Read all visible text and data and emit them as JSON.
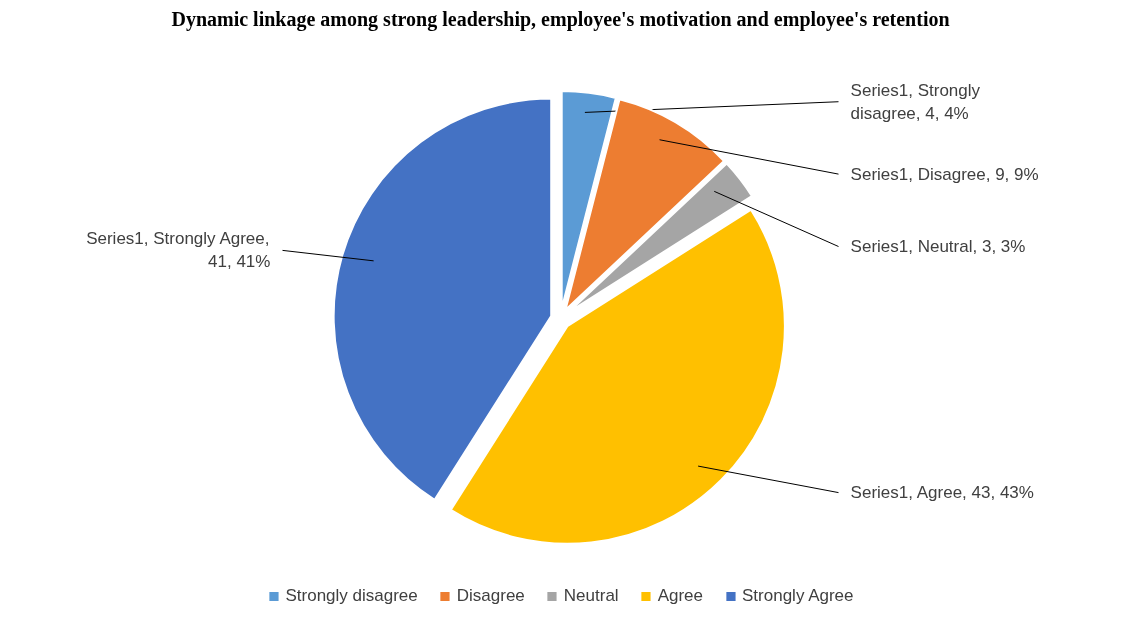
{
  "chart_data": {
    "type": "pie",
    "title": "Dynamic linkage among strong leadership, employee's motivation and employee's retention",
    "categories": [
      "Strongly disagree",
      "Disagree",
      "Neutral",
      "Agree",
      "Strongly Agree"
    ],
    "series": [
      {
        "values": [
          4,
          9,
          3,
          43,
          41
        ],
        "value_labels": [
          "Series1, Strongly disagree, 4, 4%",
          "Series1, Disagree, 9, 9%",
          "Series1, Neutral, 3, 3%",
          "Series1, Agree, 43, 43%",
          "Series1, Strongly Agree, 41, 41%"
        ]
      }
    ],
    "colors": [
      "#5b9bd5",
      "#ed7d31",
      "#a5a5a5",
      "#ffc000",
      "#4472c4"
    ],
    "legend": "bottom"
  }
}
